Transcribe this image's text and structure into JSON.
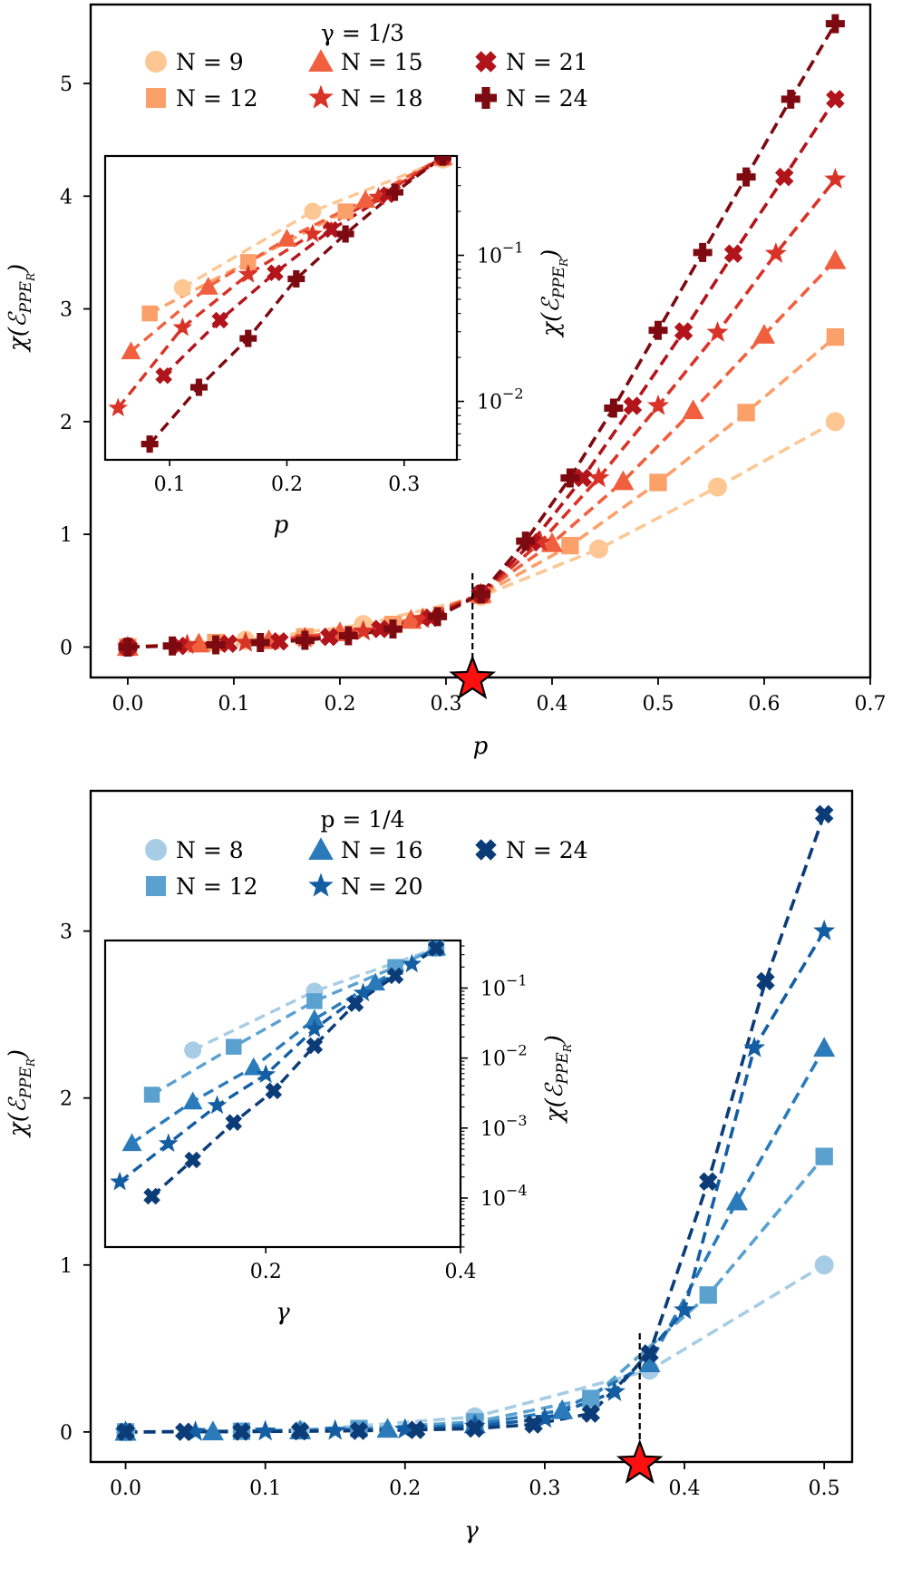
{
  "chart_data": [
    {
      "type": "line",
      "title": "γ = 1/3",
      "xlabel": "p",
      "ylabel": "χ(ℰ",
      "ylabel_sub": "PPE",
      "ylabel_subsub": "R",
      "ylabel_end": ")",
      "xlim": [
        -0.035,
        0.7
      ],
      "ylim": [
        -0.27,
        5.7
      ],
      "xticks": [
        "0.0",
        "0.1",
        "0.2",
        "0.3",
        "0.4",
        "0.5",
        "0.6",
        "0.7"
      ],
      "xtick_values": [
        0,
        0.1,
        0.2,
        0.3,
        0.4,
        0.5,
        0.6,
        0.7
      ],
      "yticks": [
        "0",
        "1",
        "2",
        "3",
        "4",
        "5"
      ],
      "ytick_values": [
        0,
        1,
        2,
        3,
        4,
        5
      ],
      "critical_point": 0.325,
      "legend_title": "γ = 1/3",
      "legend_position": "top-left",
      "series": [
        {
          "name": "N = 9",
          "marker": "circle",
          "color": "#fdc793",
          "x": [
            0,
            0.111,
            0.222,
            0.333,
            0.444,
            0.556,
            0.667
          ],
          "y": [
            0,
            0.06,
            0.2,
            0.45,
            0.87,
            1.42,
            2.0
          ]
        },
        {
          "name": "N = 12",
          "marker": "square",
          "color": "#fca06a",
          "x": [
            0,
            0.083,
            0.167,
            0.25,
            0.333,
            0.417,
            0.5,
            0.583,
            0.667
          ],
          "y": [
            0,
            0.04,
            0.09,
            0.2,
            0.46,
            0.9,
            1.46,
            2.08,
            2.75
          ]
        },
        {
          "name": "N = 15",
          "marker": "triangle",
          "color": "#f0603f",
          "x": [
            0,
            0.067,
            0.133,
            0.2,
            0.267,
            0.333,
            0.4,
            0.467,
            0.533,
            0.6,
            0.667
          ],
          "y": [
            0,
            0.03,
            0.06,
            0.13,
            0.24,
            0.47,
            0.92,
            1.47,
            2.1,
            2.77,
            3.43
          ]
        },
        {
          "name": "N = 18",
          "marker": "star",
          "color": "#d93327",
          "x": [
            0,
            0.056,
            0.111,
            0.167,
            0.222,
            0.278,
            0.333,
            0.389,
            0.444,
            0.5,
            0.556,
            0.611,
            0.667
          ],
          "y": [
            0,
            0.02,
            0.04,
            0.08,
            0.14,
            0.25,
            0.47,
            0.93,
            1.5,
            2.14,
            2.79,
            3.49,
            4.15
          ]
        },
        {
          "name": "N = 21",
          "marker": "x",
          "color": "#b2141b",
          "x": [
            0,
            0.048,
            0.095,
            0.143,
            0.19,
            0.238,
            0.286,
            0.333,
            0.381,
            0.429,
            0.476,
            0.524,
            0.571,
            0.619,
            0.667
          ],
          "y": [
            0,
            0.01,
            0.03,
            0.05,
            0.09,
            0.16,
            0.26,
            0.47,
            0.93,
            1.5,
            2.14,
            2.8,
            3.49,
            4.17,
            4.86
          ]
        },
        {
          "name": "N = 24",
          "marker": "plus",
          "color": "#7d0a10",
          "x": [
            0,
            0.042,
            0.083,
            0.125,
            0.167,
            0.208,
            0.25,
            0.292,
            0.333,
            0.375,
            0.417,
            0.458,
            0.5,
            0.542,
            0.583,
            0.625,
            0.667
          ],
          "y": [
            0,
            0.01,
            0.02,
            0.04,
            0.06,
            0.1,
            0.16,
            0.27,
            0.47,
            0.94,
            1.5,
            2.12,
            2.81,
            3.5,
            4.17,
            4.86,
            5.53
          ]
        }
      ],
      "inset": {
        "xlabel": "p",
        "scale": "log",
        "xlim": [
          0.045,
          0.345
        ],
        "ylim_log10": [
          -2.4,
          -0.32
        ],
        "xticks": [
          "0.1",
          "0.2",
          "0.3"
        ],
        "xtick_values": [
          0.1,
          0.2,
          0.3
        ],
        "yticks": [
          "10",
          "10"
        ],
        "ytick_exponents": [
          "−1",
          "−2"
        ],
        "ytick_log10": [
          -1,
          -2
        ],
        "series": [
          {
            "x": [
              0.111,
              0.222,
              0.333
            ],
            "y": [
              0.06,
              0.2,
              0.45
            ]
          },
          {
            "x": [
              0.083,
              0.167,
              0.25,
              0.333
            ],
            "y": [
              0.04,
              0.09,
              0.2,
              0.46
            ]
          },
          {
            "x": [
              0.067,
              0.133,
              0.2,
              0.267,
              0.333
            ],
            "y": [
              0.022,
              0.061,
              0.13,
              0.24,
              0.47
            ]
          },
          {
            "x": [
              0.056,
              0.111,
              0.167,
              0.222,
              0.278,
              0.333
            ],
            "y": [
              0.009,
              0.032,
              0.074,
              0.14,
              0.25,
              0.47
            ]
          },
          {
            "x": [
              0.095,
              0.143,
              0.19,
              0.238,
              0.286,
              0.333
            ],
            "y": [
              0.015,
              0.036,
              0.076,
              0.15,
              0.26,
              0.47
            ]
          },
          {
            "x": [
              0.083,
              0.125,
              0.167,
              0.208,
              0.25,
              0.292,
              0.333
            ],
            "y": [
              0.0051,
              0.0125,
              0.027,
              0.069,
              0.14,
              0.27,
              0.47
            ]
          }
        ]
      }
    },
    {
      "type": "line",
      "title": "p = 1/4",
      "xlabel": "γ",
      "ylabel": "χ(ℰ",
      "ylabel_sub": "PPE",
      "ylabel_subsub": "R",
      "ylabel_end": ")",
      "xlim": [
        -0.025,
        0.52
      ],
      "ylim": [
        -0.18,
        3.84
      ],
      "xticks": [
        "0.0",
        "0.1",
        "0.2",
        "0.3",
        "0.4",
        "0.5"
      ],
      "xtick_values": [
        0,
        0.1,
        0.2,
        0.3,
        0.4,
        0.5
      ],
      "yticks": [
        "0",
        "1",
        "2",
        "3"
      ],
      "ytick_values": [
        0,
        1,
        2,
        3
      ],
      "critical_point": 0.368,
      "legend_title": "p = 1/4",
      "legend_position": "top-left",
      "series": [
        {
          "name": "N = 8",
          "marker": "circle",
          "color": "#a6cde5",
          "x": [
            0,
            0.125,
            0.25,
            0.375,
            0.5
          ],
          "y": [
            0,
            0.01,
            0.09,
            0.37,
            1.0
          ]
        },
        {
          "name": "N = 12",
          "marker": "square",
          "color": "#5aa1d0",
          "x": [
            0,
            0.083,
            0.167,
            0.25,
            0.333,
            0.417,
            0.5
          ],
          "y": [
            0,
            0.004,
            0.02,
            0.06,
            0.2,
            0.82,
            1.65
          ]
        },
        {
          "name": "N = 16",
          "marker": "triangle",
          "color": "#2b7bba",
          "x": [
            0,
            0.0625,
            0.125,
            0.1875,
            0.25,
            0.3125,
            0.375,
            0.4375,
            0.5
          ],
          "y": [
            0,
            0.002,
            0.008,
            0.018,
            0.045,
            0.13,
            0.41,
            1.38,
            2.3
          ]
        },
        {
          "name": "N = 20",
          "marker": "star",
          "color": "#135ea3",
          "x": [
            0,
            0.05,
            0.1,
            0.15,
            0.2,
            0.25,
            0.3,
            0.35,
            0.4,
            0.45,
            0.5
          ],
          "y": [
            0,
            0.001,
            0.004,
            0.008,
            0.015,
            0.033,
            0.08,
            0.24,
            0.73,
            2.3,
            3.0
          ]
        },
        {
          "name": "N = 24",
          "marker": "x",
          "color": "#0c3c78",
          "x": [
            0,
            0.042,
            0.083,
            0.125,
            0.167,
            0.208,
            0.25,
            0.292,
            0.333,
            0.375,
            0.417,
            0.458,
            0.5
          ],
          "y": [
            0,
            0.001,
            0.002,
            0.004,
            0.007,
            0.012,
            0.02,
            0.045,
            0.11,
            0.47,
            1.5,
            2.7,
            3.7
          ]
        }
      ],
      "inset": {
        "xlabel": "γ",
        "scale": "log",
        "xlim": [
          0.035,
          0.4
        ],
        "ylim_log10": [
          -4.7,
          -0.32
        ],
        "xticks": [
          "0.2",
          "0.4"
        ],
        "xtick_values": [
          0.2,
          0.4
        ],
        "yticks": [
          "10",
          "10",
          "10",
          "10"
        ],
        "ytick_exponents": [
          "−1",
          "−2",
          "−3",
          "−4"
        ],
        "ytick_log10": [
          -1,
          -2,
          -3,
          -4
        ],
        "series": [
          {
            "x": [
              0.125,
              0.25,
              0.375
            ],
            "y": [
              0.013,
              0.09,
              0.37
            ]
          },
          {
            "x": [
              0.083,
              0.167,
              0.25,
              0.333,
              0.375
            ],
            "y": [
              0.003,
              0.0145,
              0.065,
              0.2,
              0.37
            ]
          },
          {
            "x": [
              0.0625,
              0.125,
              0.1875,
              0.25,
              0.3125,
              0.375
            ],
            "y": [
              0.00061,
              0.0024,
              0.0074,
              0.036,
              0.12,
              0.38
            ]
          },
          {
            "x": [
              0.05,
              0.1,
              0.15,
              0.2,
              0.25,
              0.3,
              0.35
            ],
            "y": [
              0.00017,
              0.0006,
              0.0021,
              0.0058,
              0.026,
              0.085,
              0.22
            ]
          },
          {
            "x": [
              0.083,
              0.125,
              0.167,
              0.208,
              0.25,
              0.292,
              0.333,
              0.375
            ],
            "y": [
              0.000106,
              0.00035,
              0.0012,
              0.0034,
              0.015,
              0.06,
              0.15,
              0.37
            ]
          }
        ]
      }
    }
  ]
}
